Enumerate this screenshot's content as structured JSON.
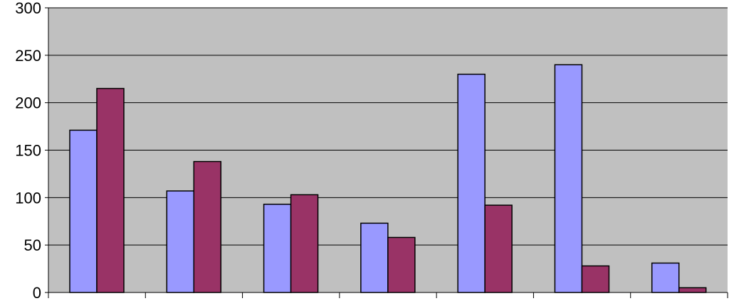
{
  "chart_data": {
    "type": "bar",
    "title": "",
    "xlabel": "",
    "ylabel": "",
    "categories": [
      "",
      "",
      "",
      "",
      "",
      "",
      ""
    ],
    "series": [
      {
        "color": "#9999ff",
        "values": [
          171,
          107,
          93,
          73,
          230,
          240,
          31
        ]
      },
      {
        "color": "#993366",
        "values": [
          215,
          138,
          103,
          58,
          92,
          28,
          5
        ]
      }
    ],
    "ylim": [
      0,
      300
    ],
    "yticks": [
      0,
      50,
      100,
      150,
      200,
      250,
      300
    ],
    "ytick_labels": [
      "0",
      "50",
      "100",
      "150",
      "200",
      "250",
      "300"
    ],
    "grid": true,
    "legend": "none",
    "plot_background": "#c0c0c0"
  }
}
